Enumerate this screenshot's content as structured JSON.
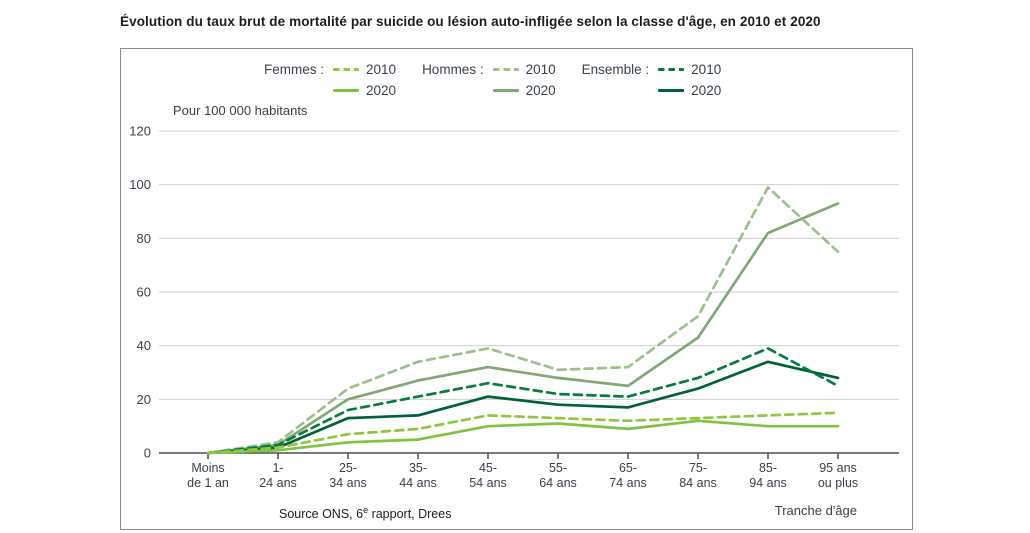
{
  "title": "Évolution du taux brut de mortalité par suicide ou lésion auto-infligée selon la classe d'âge, en 2010 et 2020",
  "legend": {
    "groups": [
      {
        "label": "Femmes :",
        "entries": [
          {
            "year": "2010",
            "style": "dashed",
            "color": "#8fc73e"
          },
          {
            "year": "2020",
            "style": "solid",
            "color": "#80c342"
          }
        ]
      },
      {
        "label": "Hommes :",
        "entries": [
          {
            "year": "2010",
            "style": "dashed",
            "color": "#9cc08c"
          },
          {
            "year": "2020",
            "style": "solid",
            "color": "#80a873"
          }
        ]
      },
      {
        "label": "Ensemble :",
        "entries": [
          {
            "year": "2010",
            "style": "dashed",
            "color": "#077c3f"
          },
          {
            "year": "2020",
            "style": "solid",
            "color": "#02603a"
          }
        ]
      }
    ]
  },
  "chart_data": {
    "type": "line",
    "title": "Évolution du taux brut de mortalité par suicide ou lésion auto-infligée selon la classe d'âge, en 2010 et 2020",
    "unit_label": "Pour 100 000 habitants",
    "xlabel": "Tranche d'âge",
    "ylabel": "Pour 100 000 habitants",
    "ylim": [
      0,
      120
    ],
    "yticks": [
      0,
      20,
      40,
      60,
      80,
      100,
      120
    ],
    "grid": true,
    "legend_position": "top",
    "categories": [
      "Moins de 1 an",
      "1-24 ans",
      "25-34 ans",
      "35-44 ans",
      "45-54 ans",
      "55-64 ans",
      "65-74 ans",
      "75-84 ans",
      "85-94 ans",
      "95 ans ou plus"
    ],
    "category_lines": [
      [
        "Moins",
        "de 1 an"
      ],
      [
        "1-",
        "24 ans"
      ],
      [
        "25-",
        "34 ans"
      ],
      [
        "35-",
        "44 ans"
      ],
      [
        "45-",
        "54 ans"
      ],
      [
        "55-",
        "64 ans"
      ],
      [
        "65-",
        "74 ans"
      ],
      [
        "75-",
        "84 ans"
      ],
      [
        "85-",
        "94 ans"
      ],
      [
        "95 ans",
        "ou plus"
      ]
    ],
    "series": [
      {
        "name": "Femmes 2010",
        "style": "dashed",
        "color": "#8fc73e",
        "values": [
          0,
          2,
          7,
          9,
          14,
          13,
          12,
          13,
          14,
          15
        ]
      },
      {
        "name": "Femmes 2020",
        "style": "solid",
        "color": "#80c342",
        "values": [
          0,
          1,
          4,
          5,
          10,
          11,
          9,
          12,
          10,
          10
        ]
      },
      {
        "name": "Hommes 2010",
        "style": "dashed",
        "color": "#9cc08c",
        "values": [
          0,
          4,
          24,
          34,
          39,
          31,
          32,
          51,
          99,
          75
        ]
      },
      {
        "name": "Hommes 2020",
        "style": "solid",
        "color": "#80a873",
        "values": [
          0,
          3,
          20,
          27,
          32,
          28,
          25,
          43,
          82,
          93
        ]
      },
      {
        "name": "Ensemble 2010",
        "style": "dashed",
        "color": "#077c3f",
        "values": [
          0,
          3,
          16,
          21,
          26,
          22,
          21,
          28,
          39,
          25
        ]
      },
      {
        "name": "Ensemble 2020",
        "style": "solid",
        "color": "#02603a",
        "values": [
          0,
          2,
          13,
          14,
          21,
          18,
          17,
          24,
          34,
          28
        ]
      }
    ]
  },
  "source": {
    "prefix": "Source ONS, 6",
    "sup": "e",
    "suffix": " rapport, Drees"
  }
}
